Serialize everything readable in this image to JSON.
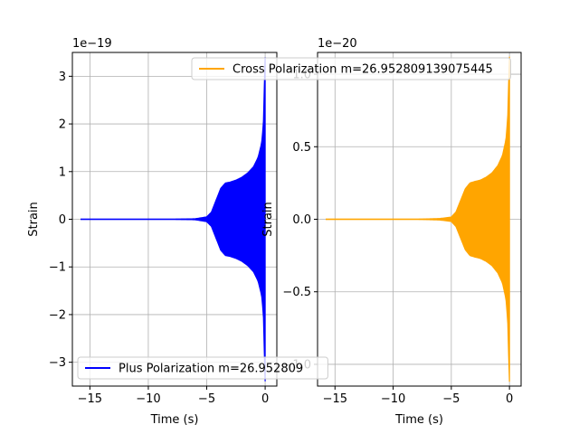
{
  "chart_data": [
    {
      "type": "line",
      "title": "",
      "xlabel": "Time (s)",
      "ylabel": "Strain",
      "offset_text": "1e−19",
      "xlim": [
        -16.5,
        1.0
      ],
      "ylim": [
        -3.5,
        3.5
      ],
      "xticks": [
        -15,
        -10,
        -5,
        0
      ],
      "xtick_labels": [
        "−15",
        "−10",
        "−5",
        "0"
      ],
      "yticks": [
        -3,
        -2,
        -1,
        0,
        1,
        2,
        3
      ],
      "ytick_labels": [
        "−3",
        "−2",
        "−1",
        "0",
        "1",
        "2",
        "3"
      ],
      "grid": true,
      "legend_position": "lower-left",
      "series": [
        {
          "name": "Plus Polarization m=26.952809",
          "color": "#0000ff",
          "envelope": {
            "t": [
              -15.8,
              -8.0,
              -6.0,
              -5.0,
              -4.6,
              -4.2,
              -3.8,
              -3.4,
              -3.0,
              -2.5,
              -2.0,
              -1.5,
              -1.0,
              -0.6,
              -0.3,
              -0.15,
              -0.05,
              0.0
            ],
            "amp": [
              0.0,
              0.0,
              0.01,
              0.05,
              0.15,
              0.4,
              0.65,
              0.76,
              0.78,
              0.82,
              0.88,
              0.97,
              1.1,
              1.3,
              1.6,
              2.0,
              3.0,
              3.4
            ]
          }
        }
      ]
    },
    {
      "type": "line",
      "title": "",
      "xlabel": "Time (s)",
      "ylabel": "Strain",
      "offset_text": "1e−20",
      "xlim": [
        -16.5,
        1.0
      ],
      "ylim": [
        -1.15,
        1.15
      ],
      "xticks": [
        -15,
        -10,
        -5,
        0
      ],
      "xtick_labels": [
        "−15",
        "−10",
        "−5",
        "0"
      ],
      "yticks": [
        -1.0,
        -0.5,
        0.0,
        0.5,
        1.0
      ],
      "ytick_labels": [
        "−1.0",
        "−0.5",
        "0.0",
        "0.5",
        "1.0"
      ],
      "grid": true,
      "legend_position": "top",
      "series": [
        {
          "name": "Cross Polarization m=26.952809139075445",
          "color": "#ffa500",
          "envelope": {
            "t": [
              -15.8,
              -8.0,
              -6.0,
              -5.0,
              -4.6,
              -4.2,
              -3.8,
              -3.4,
              -3.0,
              -2.5,
              -2.0,
              -1.5,
              -1.0,
              -0.6,
              -0.3,
              -0.15,
              -0.05,
              0.0
            ],
            "amp": [
              0.0,
              0.0,
              0.005,
              0.015,
              0.05,
              0.13,
              0.21,
              0.25,
              0.26,
              0.27,
              0.29,
              0.32,
              0.37,
              0.44,
              0.55,
              0.7,
              1.0,
              1.12
            ]
          }
        }
      ]
    }
  ]
}
